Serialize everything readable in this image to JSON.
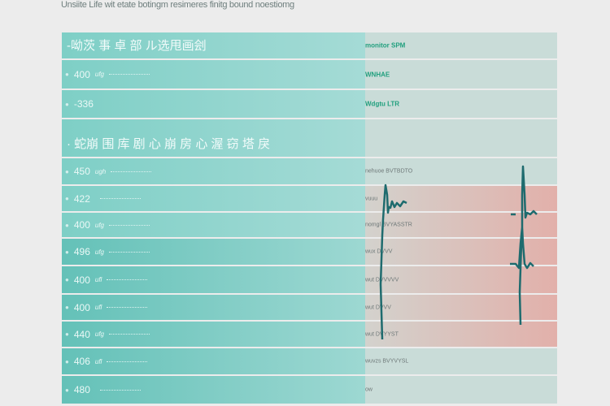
{
  "caption": "Unsiite Life wit etate botingm resimeres finitg bound noestiomg",
  "sections": [
    {
      "title": "-呦茨 事 卓 部 ル选甩画刽",
      "tag": "monitor SPM"
    },
    {
      "title": "· 蛇崩 围 库 剧 心 崩 房 心 渥 窃 塔 戾",
      "tag": ""
    }
  ],
  "rows_top": [
    {
      "value": "400",
      "unit": "ufg",
      "tag": "WNHAE"
    },
    {
      "value": "-336",
      "unit": "",
      "tag": "Wdgtu LTR"
    }
  ],
  "rows_main": [
    {
      "value": "450",
      "unit": "ugh",
      "right_label": "nehuoe  BVTBDTO"
    },
    {
      "value": "422",
      "unit": "",
      "right_label": "vuuu"
    },
    {
      "value": "400",
      "unit": "ufg",
      "right_label": "nomgl  BVYASSTR"
    },
    {
      "value": "496",
      "unit": "ufg",
      "right_label": "wux  DVVV"
    },
    {
      "value": "400",
      "unit": "ufl",
      "right_label": "wut  DVVVVV"
    },
    {
      "value": "400",
      "unit": "ufl",
      "right_label": "wut  DVVV"
    },
    {
      "value": "440",
      "unit": "ufg",
      "right_label": "wut  DVYYST"
    },
    {
      "value": "406",
      "unit": "ufl",
      "right_label": "wuvzs  BVYVYSL"
    },
    {
      "value": "480",
      "unit": "",
      "right_label": "ow"
    }
  ],
  "colors": {
    "teal": "#7ecfc6",
    "alert": "#e2b0aa",
    "trace": "#1e6b6e",
    "tag": "#1f9f7d"
  }
}
